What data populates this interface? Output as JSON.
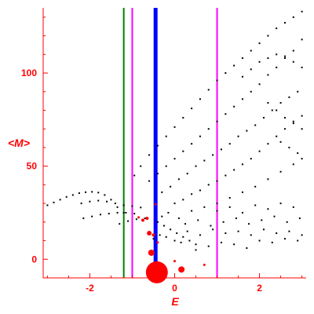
{
  "chart_data": {
    "type": "scatter",
    "title": "",
    "xlabel": "E",
    "ylabel": "<M>",
    "xlim": [
      -3.1,
      3.1
    ],
    "ylim": [
      -10,
      135
    ],
    "x_ticks": [
      -2,
      0,
      2
    ],
    "x_tick_labels": [
      "-2",
      "0",
      "2"
    ],
    "y_ticks": [
      0,
      50,
      100
    ],
    "y_tick_labels": [
      "0",
      "50",
      "100"
    ],
    "axis_color": "#ff0000",
    "grid": false,
    "series": [
      {
        "marker": "point",
        "color": "#000000",
        "points": [
          [
            -3.0,
            29
          ],
          [
            -2.85,
            30.5
          ],
          [
            -2.7,
            32
          ],
          [
            -2.55,
            33.5
          ],
          [
            -2.4,
            34.5
          ],
          [
            -2.25,
            35.5
          ],
          [
            -2.1,
            36
          ],
          [
            -1.95,
            36.2
          ],
          [
            -1.8,
            35.8
          ],
          [
            -1.65,
            34.5
          ],
          [
            -1.5,
            32
          ],
          [
            -1.35,
            28
          ],
          [
            -1.2,
            25
          ],
          [
            -2.2,
            30
          ],
          [
            -2.0,
            31
          ],
          [
            -1.8,
            31.5
          ],
          [
            -1.6,
            31
          ],
          [
            -1.4,
            30
          ],
          [
            -1.2,
            29
          ],
          [
            -1.0,
            28.5
          ],
          [
            -0.8,
            27.8
          ],
          [
            -2.15,
            22
          ],
          [
            -1.95,
            23
          ],
          [
            -1.75,
            24
          ],
          [
            -1.55,
            24.5
          ],
          [
            -1.35,
            25
          ],
          [
            -1.15,
            25
          ],
          [
            -0.95,
            24.5
          ],
          [
            -1.3,
            19
          ],
          [
            -1.1,
            20.5
          ],
          [
            -0.9,
            21.5
          ],
          [
            -0.7,
            22
          ],
          [
            -0.95,
            45
          ],
          [
            -0.8,
            50
          ],
          [
            -0.6,
            56
          ],
          [
            -0.4,
            61
          ],
          [
            -0.2,
            66
          ],
          [
            0.0,
            71
          ],
          [
            0.2,
            76
          ],
          [
            0.4,
            81
          ],
          [
            0.6,
            86
          ],
          [
            0.8,
            91
          ],
          [
            1.0,
            96
          ],
          [
            1.2,
            100
          ],
          [
            1.4,
            104
          ],
          [
            1.6,
            108
          ],
          [
            1.8,
            112
          ],
          [
            2.0,
            116
          ],
          [
            2.2,
            120
          ],
          [
            2.4,
            124
          ],
          [
            2.6,
            127
          ],
          [
            2.8,
            130
          ],
          [
            3.0,
            133
          ],
          [
            -0.6,
            42
          ],
          [
            -0.4,
            46
          ],
          [
            -0.2,
            50
          ],
          [
            0.0,
            54
          ],
          [
            0.2,
            58
          ],
          [
            0.4,
            62
          ],
          [
            0.6,
            66
          ],
          [
            0.8,
            70
          ],
          [
            1.0,
            74
          ],
          [
            1.2,
            78
          ],
          [
            1.4,
            82
          ],
          [
            1.6,
            86
          ],
          [
            1.8,
            90
          ],
          [
            2.0,
            94
          ],
          [
            2.2,
            99
          ],
          [
            2.4,
            103
          ],
          [
            2.6,
            108
          ],
          [
            2.8,
            112
          ],
          [
            3.0,
            118
          ],
          [
            -0.3,
            36
          ],
          [
            -0.1,
            39
          ],
          [
            0.1,
            43
          ],
          [
            0.3,
            46
          ],
          [
            0.5,
            50
          ],
          [
            0.7,
            53
          ],
          [
            0.9,
            56
          ],
          [
            1.1,
            59
          ],
          [
            1.3,
            62
          ],
          [
            1.5,
            66
          ],
          [
            1.7,
            69
          ],
          [
            1.9,
            72
          ],
          [
            2.1,
            76
          ],
          [
            2.3,
            80
          ],
          [
            2.5,
            84
          ],
          [
            2.7,
            87
          ],
          [
            2.9,
            90
          ],
          [
            0.0,
            30
          ],
          [
            0.2,
            32
          ],
          [
            0.4,
            35
          ],
          [
            0.6,
            37
          ],
          [
            0.8,
            40
          ],
          [
            1.0,
            42
          ],
          [
            1.2,
            45
          ],
          [
            1.4,
            48
          ],
          [
            1.6,
            51
          ],
          [
            1.8,
            54
          ],
          [
            2.0,
            58
          ],
          [
            2.2,
            62
          ],
          [
            2.4,
            66
          ],
          [
            2.6,
            70
          ],
          [
            2.8,
            74
          ],
          [
            3.0,
            77
          ],
          [
            0.4,
            26
          ],
          [
            0.7,
            28
          ],
          [
            1.0,
            30
          ],
          [
            1.3,
            33
          ],
          [
            1.6,
            36
          ],
          [
            1.9,
            39
          ],
          [
            2.2,
            43
          ],
          [
            2.5,
            47
          ],
          [
            2.8,
            51
          ],
          [
            3.0,
            54
          ],
          [
            1.6,
            98
          ],
          [
            1.8,
            102
          ],
          [
            2.0,
            106
          ],
          [
            2.2,
            108
          ],
          [
            2.4,
            110
          ],
          [
            2.6,
            109
          ],
          [
            2.8,
            106
          ],
          [
            3.0,
            103
          ],
          [
            2.2,
            84
          ],
          [
            2.4,
            80
          ],
          [
            2.6,
            76
          ],
          [
            2.8,
            73
          ],
          [
            3.0,
            70
          ],
          [
            2.5,
            63
          ],
          [
            2.7,
            60
          ],
          [
            2.9,
            57
          ],
          [
            -0.4,
            20
          ],
          [
            -0.25,
            18
          ],
          [
            -0.1,
            16
          ],
          [
            0.05,
            14
          ],
          [
            0.2,
            12
          ],
          [
            0.35,
            10
          ],
          [
            0.5,
            8
          ],
          [
            -0.3,
            23
          ],
          [
            -0.15,
            25
          ],
          [
            0.1,
            22
          ],
          [
            0.25,
            19
          ],
          [
            0.55,
            21
          ],
          [
            0.85,
            18
          ],
          [
            1.15,
            20
          ],
          [
            1.45,
            22
          ],
          [
            1.75,
            19
          ],
          [
            2.05,
            21
          ],
          [
            2.35,
            23
          ],
          [
            2.65,
            20
          ],
          [
            2.95,
            22
          ],
          [
            0.3,
            15
          ],
          [
            0.6,
            13
          ],
          [
            0.9,
            16
          ],
          [
            1.2,
            14
          ],
          [
            1.5,
            15
          ],
          [
            1.8,
            13
          ],
          [
            2.1,
            16
          ],
          [
            2.4,
            14
          ],
          [
            2.7,
            15
          ],
          [
            3.0,
            13
          ],
          [
            0.5,
            5
          ],
          [
            0.8,
            7
          ],
          [
            1.1,
            9
          ],
          [
            1.4,
            8
          ],
          [
            1.7,
            6
          ],
          [
            2.0,
            10
          ],
          [
            2.3,
            9
          ],
          [
            2.6,
            11
          ],
          [
            2.9,
            10
          ],
          [
            1.0,
            26
          ],
          [
            1.3,
            28
          ],
          [
            1.6,
            25
          ],
          [
            1.9,
            29
          ],
          [
            2.2,
            27
          ],
          [
            2.5,
            30
          ],
          [
            2.8,
            28
          ],
          [
            -0.5,
            11
          ],
          [
            -0.35,
            13
          ],
          [
            -0.2,
            12
          ],
          [
            0.0,
            10
          ],
          [
            0.15,
            9
          ]
        ]
      },
      {
        "marker": "filled-circle",
        "color": "#ff0000",
        "points": [
          [
            -0.42,
            -7,
            14
          ],
          [
            0.16,
            -5.5,
            4
          ],
          [
            -0.55,
            3.5,
            4
          ],
          [
            -0.6,
            14,
            3
          ],
          [
            -0.5,
            13,
            2
          ],
          [
            -0.75,
            21,
            2
          ],
          [
            -0.65,
            22,
            2
          ],
          [
            -0.85,
            22.5,
            1.5
          ],
          [
            -0.45,
            29.5,
            1.5
          ],
          [
            0.7,
            -3,
            1.5
          ],
          [
            0.0,
            -1,
            1.5
          ],
          [
            -0.4,
            9,
            1.5
          ]
        ]
      }
    ],
    "vertical_lines": [
      {
        "x": -1.2,
        "color": "#008000",
        "width": 2
      },
      {
        "x": -1.0,
        "color": "#ff00ff",
        "width": 2
      },
      {
        "x": -0.45,
        "color": "#0000ff",
        "width": 5
      },
      {
        "x": 1.0,
        "color": "#ff00ff",
        "width": 2
      }
    ]
  }
}
